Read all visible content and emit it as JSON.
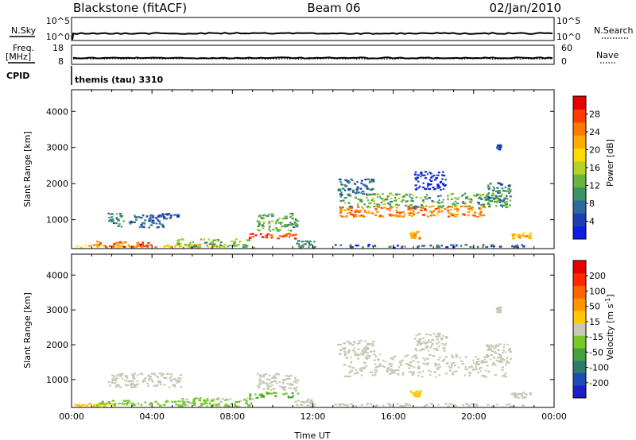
{
  "header": {
    "station": "Blackstone (fitACF)",
    "beam": "Beam 06",
    "date": "02/Jan/2010"
  },
  "top_panels": {
    "nsky_label": "N.Sky",
    "nsky_ticks": [
      "10^5",
      "10^0"
    ],
    "nsearch_label": "N.Search",
    "nsearch_ticks": [
      "10^5",
      "10^0"
    ],
    "freq_label": "Freq.",
    "freq_unit": "[MHz]",
    "freq_ticks": [
      "18",
      "8"
    ],
    "nave_label": "Nave",
    "nave_ticks": [
      "60",
      "0"
    ],
    "cpid_label": "CPID",
    "cpid_value": "themis (tau) 3310"
  },
  "colors": {
    "power": [
      "#0a1ee6",
      "#1e3cb4",
      "#2e6a9a",
      "#3c9464",
      "#68b43c",
      "#b4d228",
      "#ffdc00",
      "#ffaa00",
      "#ff7800",
      "#ff3c00",
      "#e60000"
    ],
    "velocity": [
      "#1e1ec8",
      "#1e4ab4",
      "#2e7a6e",
      "#48a03c",
      "#78c828",
      "#c8c8b4",
      "#ffc800",
      "#ff9600",
      "#ff6400",
      "#ff2800",
      "#e60000"
    ],
    "ground_scatter": "#c8c8b4"
  },
  "chart_data": [
    {
      "type": "heatmap",
      "panel": "power",
      "ylabel": "Slant Range [km]",
      "ylim": [
        200,
        4600
      ],
      "y_ticks": [
        "1000",
        "2000",
        "3000",
        "4000"
      ],
      "colorbar_label": "Power [dB]",
      "colorbar_ticks": [
        "4",
        "8",
        "12",
        "16",
        "20",
        "24",
        "28"
      ],
      "colorbar_range": [
        0,
        32
      ],
      "x_ticks": [
        "00:00",
        "04:00",
        "08:00",
        "12:00",
        "16:00",
        "20:00",
        "00:00"
      ],
      "xlim_hours": [
        0,
        24
      ],
      "regions": [
        {
          "t": [
            0.1,
            7.2
          ],
          "r": [
            250,
            340
          ],
          "v": 22
        },
        {
          "t": [
            1.2,
            4.0
          ],
          "r": [
            270,
            420
          ],
          "v": 26
        },
        {
          "t": [
            1.8,
            2.6
          ],
          "r": [
            800,
            1200
          ],
          "v": 9
        },
        {
          "t": [
            2.8,
            4.6
          ],
          "r": [
            800,
            1150
          ],
          "v": 7
        },
        {
          "t": [
            4.2,
            5.4
          ],
          "r": [
            1050,
            1200
          ],
          "v": 6
        },
        {
          "t": [
            5.2,
            9.0
          ],
          "r": [
            250,
            500
          ],
          "v": 14
        },
        {
          "t": [
            8.8,
            11.3
          ],
          "r": [
            500,
            650
          ],
          "v": 28
        },
        {
          "t": [
            9.2,
            11.2
          ],
          "r": [
            700,
            1200
          ],
          "v": 12
        },
        {
          "t": [
            11.0,
            12.2
          ],
          "r": [
            250,
            450
          ],
          "v": 9
        },
        {
          "t": [
            13.0,
            22.5
          ],
          "r": [
            250,
            330
          ],
          "v": 6
        },
        {
          "t": [
            13.3,
            20.5
          ],
          "r": [
            1100,
            1400
          ],
          "v": 24
        },
        {
          "t": [
            13.3,
            21.8
          ],
          "r": [
            1350,
            1750
          ],
          "v": 12
        },
        {
          "t": [
            13.2,
            15.0
          ],
          "r": [
            1700,
            2150
          ],
          "v": 7
        },
        {
          "t": [
            16.8,
            17.3
          ],
          "r": [
            500,
            700
          ],
          "v": 22
        },
        {
          "t": [
            17.0,
            18.6
          ],
          "r": [
            1850,
            2350
          ],
          "v": 3
        },
        {
          "t": [
            20.6,
            21.8
          ],
          "r": [
            1500,
            2050
          ],
          "v": 9
        },
        {
          "t": [
            21.1,
            21.3
          ],
          "r": [
            2950,
            3100
          ],
          "v": 4
        },
        {
          "t": [
            21.8,
            22.8
          ],
          "r": [
            500,
            650
          ],
          "v": 22
        }
      ]
    },
    {
      "type": "heatmap",
      "panel": "velocity",
      "ylabel": "Slant Range [km]",
      "ylim": [
        200,
        4600
      ],
      "y_ticks": [
        "1000",
        "2000",
        "3000",
        "4000"
      ],
      "colorbar_label": "Velocity [m s^-1]",
      "colorbar_ticks": [
        "200",
        "100",
        "50",
        "15",
        "-15",
        "-50",
        "-100",
        "-200"
      ],
      "colorbar_range": [
        -250,
        250
      ],
      "x_ticks": [
        "00:00",
        "04:00",
        "08:00",
        "12:00",
        "16:00",
        "20:00",
        "00:00"
      ],
      "xlabel": "Time UT",
      "xlim_hours": [
        0,
        24
      ],
      "regions": [
        {
          "t": [
            0.1,
            2.0
          ],
          "r": [
            250,
            340
          ],
          "v": 45
        },
        {
          "t": [
            1.2,
            7.0
          ],
          "r": [
            270,
            420
          ],
          "v": -40
        },
        {
          "t": [
            1.8,
            5.4
          ],
          "r": [
            800,
            1200
          ],
          "v": 0
        },
        {
          "t": [
            5.2,
            9.0
          ],
          "r": [
            250,
            500
          ],
          "v": -30
        },
        {
          "t": [
            8.8,
            11.3
          ],
          "r": [
            500,
            650
          ],
          "v": -70
        },
        {
          "t": [
            9.2,
            11.2
          ],
          "r": [
            700,
            1200
          ],
          "v": 0
        },
        {
          "t": [
            11.0,
            12.2
          ],
          "r": [
            250,
            450
          ],
          "v": 0
        },
        {
          "t": [
            13.0,
            22.5
          ],
          "r": [
            250,
            330
          ],
          "v": 0
        },
        {
          "t": [
            13.3,
            21.8
          ],
          "r": [
            1100,
            1750
          ],
          "v": 0
        },
        {
          "t": [
            13.2,
            15.0
          ],
          "r": [
            1700,
            2150
          ],
          "v": 0
        },
        {
          "t": [
            16.8,
            17.3
          ],
          "r": [
            500,
            700
          ],
          "v": 40
        },
        {
          "t": [
            17.0,
            18.6
          ],
          "r": [
            1850,
            2350
          ],
          "v": 0
        },
        {
          "t": [
            20.6,
            21.8
          ],
          "r": [
            1500,
            2050
          ],
          "v": 0
        },
        {
          "t": [
            21.1,
            21.3
          ],
          "r": [
            2950,
            3100
          ],
          "v": 0
        },
        {
          "t": [
            21.8,
            22.8
          ],
          "r": [
            500,
            650
          ],
          "v": 0
        }
      ]
    }
  ]
}
